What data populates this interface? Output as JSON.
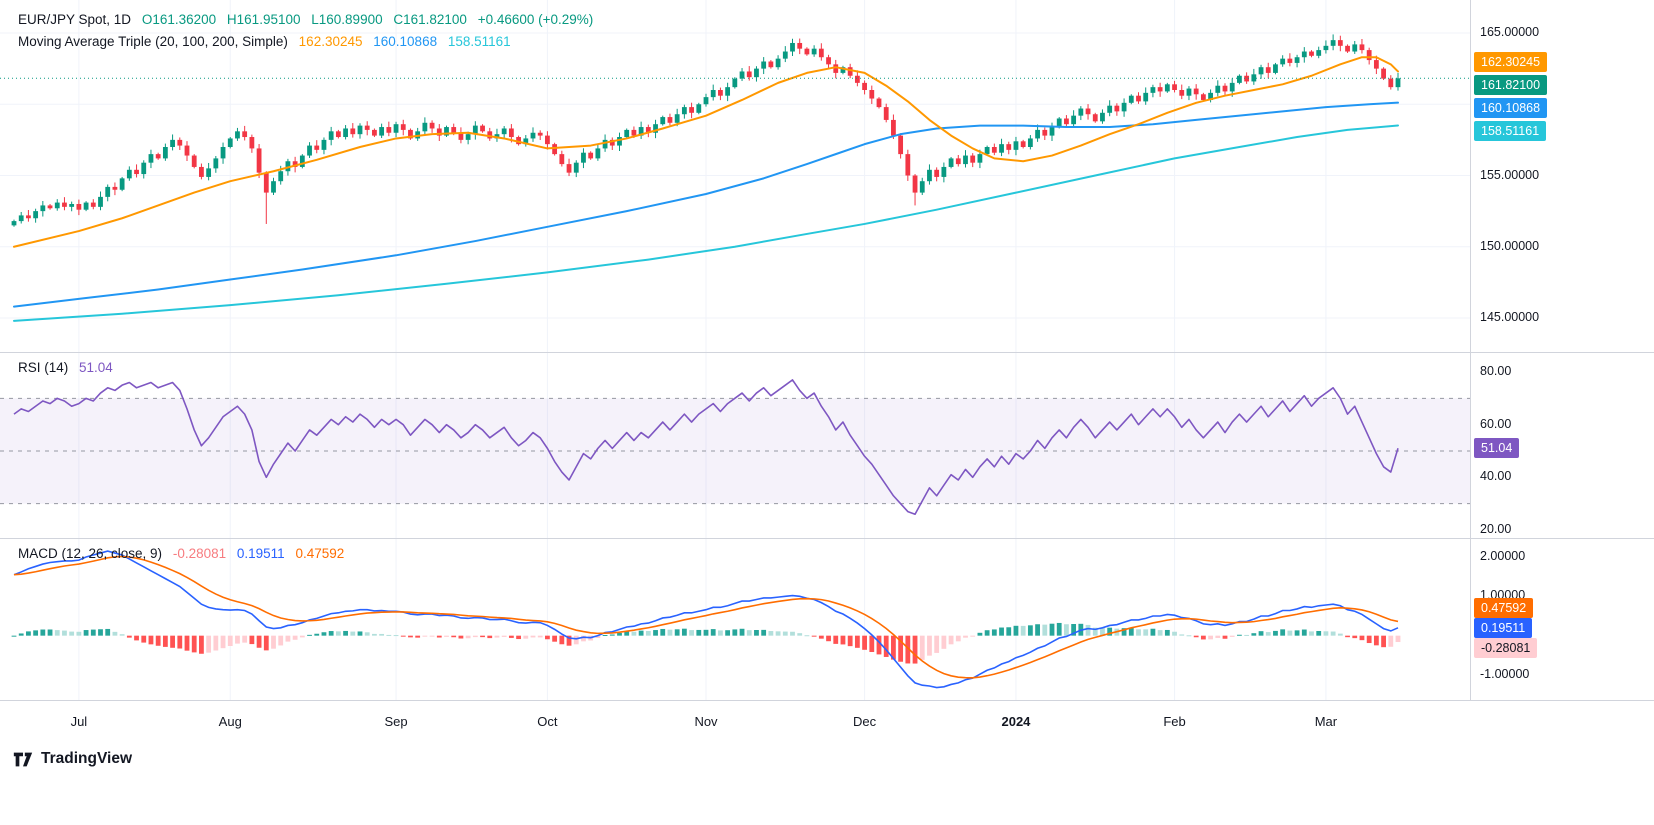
{
  "header": {
    "symbol_line": {
      "title": "EUR/JPY Spot, 1D",
      "o": "O161.36200",
      "h": "H161.95100",
      "l": "L160.89900",
      "c": "C161.82100",
      "change": "+0.46600 (+0.29%)"
    },
    "ma_line": {
      "title": "Moving Average Triple (20, 100, 200, Simple)",
      "v20": "162.30245",
      "v100": "160.10868",
      "v200": "158.51161"
    },
    "rsi_line": {
      "title": "RSI (14)",
      "value": "51.04"
    },
    "macd_line": {
      "title": "MACD (12, 26, close, 9)",
      "hist": "-0.28081",
      "macd": "0.19511",
      "signal": "0.47592"
    }
  },
  "watermark": {
    "text": "TradingView"
  },
  "colors": {
    "up": "#089981",
    "down": "#F23645",
    "ma20": "#FF9800",
    "ma100": "#2196F3",
    "ma200": "#26C6DA",
    "rsi": "#7E57C2",
    "macd_line": "#2962FF",
    "signal_line": "#FF6D00",
    "hist_up": "#26A69A",
    "hist_up_fade": "#B2DFDB",
    "hist_down": "#FF5252",
    "hist_down_fade": "#FFCDD2",
    "last_price": "#089981",
    "grid": "#F0F3FA",
    "separator": "#D1D4DC",
    "band_fill": "rgba(126,87,194,0.08)",
    "band_line": "#9598A1",
    "text": "#131722"
  },
  "price_badges": [
    {
      "label": "162.30245",
      "bg": "#FF9800",
      "fg": "#FFFFFF"
    },
    {
      "label": "161.82100",
      "bg": "#089981",
      "fg": "#FFFFFF"
    },
    {
      "label": "160.10868",
      "bg": "#2196F3",
      "fg": "#FFFFFF"
    },
    {
      "label": "158.51161",
      "bg": "#26C6DA",
      "fg": "#FFFFFF"
    }
  ],
  "rsi_badge": {
    "label": "51.04",
    "bg": "#7E57C2",
    "fg": "#FFFFFF"
  },
  "macd_badges": [
    {
      "label": "0.47592",
      "bg": "#FF6D00",
      "fg": "#FFFFFF"
    },
    {
      "label": "0.19511",
      "bg": "#2962FF",
      "fg": "#FFFFFF"
    },
    {
      "label": "-0.28081",
      "bg": "#FFCDD2",
      "fg": "#131722"
    }
  ],
  "chart_data": {
    "type": "candlestick",
    "symbol": "EUR/JPY Spot",
    "interval": "1D",
    "legend_ohlc": {
      "open": 161.362,
      "high": 161.951,
      "low": 160.899,
      "close": 161.821,
      "change_abs": 0.466,
      "change_pct": 0.29
    },
    "price_axis_ticks": [
      {
        "label": "165.00000",
        "value": 165
      },
      {
        "label": "155.00000",
        "value": 155
      },
      {
        "label": "150.00000",
        "value": 150
      },
      {
        "label": "145.00000",
        "value": 145
      }
    ],
    "price_grid": [
      165,
      160,
      155,
      150,
      145
    ],
    "closes": [
      151.8,
      152.2,
      152.0,
      152.5,
      152.9,
      152.7,
      153.1,
      152.8,
      153.0,
      152.6,
      153.1,
      152.8,
      153.5,
      154.2,
      154.0,
      154.8,
      155.4,
      155.1,
      155.9,
      156.5,
      156.2,
      157.0,
      157.5,
      157.1,
      156.4,
      155.6,
      154.9,
      155.5,
      156.2,
      157.0,
      157.6,
      158.1,
      157.7,
      156.9,
      155.2,
      153.8,
      154.6,
      155.3,
      156.0,
      155.6,
      156.4,
      157.1,
      156.8,
      157.5,
      158.1,
      157.7,
      158.3,
      157.9,
      158.5,
      158.2,
      157.8,
      158.4,
      158.0,
      158.6,
      158.2,
      157.6,
      158.1,
      158.7,
      158.3,
      157.8,
      158.4,
      158.0,
      157.5,
      157.9,
      158.5,
      158.1,
      157.6,
      157.9,
      158.3,
      157.7,
      157.2,
      157.6,
      158.0,
      157.8,
      157.2,
      156.5,
      155.8,
      155.2,
      155.9,
      156.6,
      156.2,
      156.9,
      157.5,
      157.1,
      157.7,
      158.2,
      157.8,
      158.4,
      158.0,
      158.6,
      159.1,
      158.7,
      159.3,
      159.8,
      159.4,
      160.0,
      160.5,
      161.0,
      160.6,
      161.2,
      161.8,
      162.3,
      161.9,
      162.5,
      163.0,
      162.6,
      163.2,
      163.7,
      164.3,
      163.9,
      163.5,
      163.9,
      163.3,
      162.8,
      162.2,
      162.6,
      162.0,
      161.5,
      161.0,
      160.4,
      159.8,
      158.9,
      157.8,
      156.5,
      155.0,
      153.8,
      154.6,
      155.4,
      154.9,
      155.6,
      156.2,
      155.8,
      156.4,
      155.9,
      156.5,
      157.0,
      156.6,
      157.2,
      156.8,
      157.4,
      157.0,
      157.6,
      158.2,
      157.8,
      158.4,
      159.0,
      158.6,
      159.2,
      159.7,
      159.3,
      158.8,
      159.4,
      159.9,
      159.5,
      160.1,
      160.6,
      160.2,
      160.8,
      161.2,
      160.9,
      161.4,
      161.0,
      160.6,
      161.1,
      160.7,
      160.3,
      160.8,
      161.3,
      160.9,
      161.5,
      162.0,
      161.6,
      162.1,
      162.6,
      162.2,
      162.8,
      163.2,
      162.9,
      163.3,
      163.7,
      163.4,
      163.8,
      164.1,
      164.5,
      164.1,
      163.7,
      164.2,
      163.8,
      163.1,
      162.5,
      161.8,
      161.2,
      161.82
    ],
    "wick_high_overrides": {
      "108": 164.6,
      "183": 164.9
    },
    "wick_low_overrides": {
      "35": 151.6,
      "125": 152.9
    },
    "moving_averages": {
      "kind": "Simple",
      "periods": [
        20,
        100,
        200
      ],
      "last_values": [
        162.30245,
        160.10868,
        158.51161
      ],
      "ma20_anchors": [
        [
          0,
          150.0
        ],
        [
          9,
          151.1
        ],
        [
          15,
          152.0
        ],
        [
          20,
          152.9
        ],
        [
          25,
          153.8
        ],
        [
          30,
          154.6
        ],
        [
          36,
          155.3
        ],
        [
          42,
          156.1
        ],
        [
          48,
          157.0
        ],
        [
          53,
          157.6
        ],
        [
          58,
          157.9
        ],
        [
          63,
          158.0
        ],
        [
          68,
          157.6
        ],
        [
          74,
          156.9
        ],
        [
          80,
          157.1
        ],
        [
          85,
          157.6
        ],
        [
          90,
          158.3
        ],
        [
          96,
          159.2
        ],
        [
          101,
          160.3
        ],
        [
          106,
          161.5
        ],
        [
          110,
          162.2
        ],
        [
          114,
          162.6
        ],
        [
          118,
          162.2
        ],
        [
          121,
          161.3
        ],
        [
          124,
          160.2
        ],
        [
          127,
          158.9
        ],
        [
          130,
          157.8
        ],
        [
          133,
          156.9
        ],
        [
          136,
          156.2
        ],
        [
          140,
          156.0
        ],
        [
          144,
          156.4
        ],
        [
          148,
          157.1
        ],
        [
          152,
          157.9
        ],
        [
          156,
          158.6
        ],
        [
          160,
          159.4
        ],
        [
          164,
          160.1
        ],
        [
          168,
          160.6
        ],
        [
          172,
          161.0
        ],
        [
          176,
          161.4
        ],
        [
          180,
          162.0
        ],
        [
          184,
          162.8
        ],
        [
          187,
          163.3
        ],
        [
          189,
          163.3
        ],
        [
          191,
          162.8
        ],
        [
          192,
          162.3
        ]
      ],
      "ma100_anchors": [
        [
          0,
          145.8
        ],
        [
          10,
          146.4
        ],
        [
          20,
          147.0
        ],
        [
          30,
          147.7
        ],
        [
          40,
          148.4
        ],
        [
          53,
          149.4
        ],
        [
          64,
          150.4
        ],
        [
          74,
          151.4
        ],
        [
          85,
          152.5
        ],
        [
          96,
          153.7
        ],
        [
          104,
          154.8
        ],
        [
          110,
          155.8
        ],
        [
          114,
          156.5
        ],
        [
          118,
          157.2
        ],
        [
          123,
          157.9
        ],
        [
          128,
          158.3
        ],
        [
          134,
          158.5
        ],
        [
          140,
          158.5
        ],
        [
          146,
          158.4
        ],
        [
          152,
          158.4
        ],
        [
          158,
          158.6
        ],
        [
          164,
          158.9
        ],
        [
          170,
          159.2
        ],
        [
          176,
          159.5
        ],
        [
          182,
          159.8
        ],
        [
          188,
          160.0
        ],
        [
          192,
          160.11
        ]
      ],
      "ma200_anchors": [
        [
          0,
          144.8
        ],
        [
          15,
          145.3
        ],
        [
          30,
          145.9
        ],
        [
          45,
          146.6
        ],
        [
          60,
          147.4
        ],
        [
          74,
          148.2
        ],
        [
          88,
          149.1
        ],
        [
          100,
          150.0
        ],
        [
          110,
          150.9
        ],
        [
          118,
          151.6
        ],
        [
          128,
          152.6
        ],
        [
          139,
          153.8
        ],
        [
          150,
          155.0
        ],
        [
          161,
          156.2
        ],
        [
          170,
          157.0
        ],
        [
          178,
          157.7
        ],
        [
          185,
          158.2
        ],
        [
          192,
          158.51
        ]
      ]
    },
    "rsi": {
      "period": 14,
      "last": 51.04,
      "upper_band": 70,
      "mid": 50,
      "lower_band": 30,
      "axis_ticks": [
        {
          "label": "80.00",
          "value": 80
        },
        {
          "label": "60.00",
          "value": 60
        },
        {
          "label": "40.00",
          "value": 40
        },
        {
          "label": "20.00",
          "value": 20
        }
      ],
      "values": [
        64,
        66,
        65,
        67,
        69,
        68,
        70,
        69,
        67,
        68,
        70,
        69,
        72,
        74,
        73,
        75,
        76,
        74,
        75,
        76,
        74,
        75,
        76,
        73,
        66,
        58,
        52,
        55,
        59,
        63,
        65,
        67,
        64,
        58,
        46,
        40,
        45,
        49,
        53,
        50,
        54,
        58,
        56,
        59,
        62,
        60,
        63,
        61,
        64,
        62,
        59,
        62,
        60,
        62,
        60,
        56,
        59,
        62,
        60,
        57,
        60,
        58,
        55,
        57,
        60,
        58,
        55,
        57,
        59,
        55,
        52,
        54,
        57,
        55,
        51,
        46,
        42,
        39,
        44,
        49,
        47,
        51,
        54,
        51,
        54,
        57,
        54,
        57,
        55,
        58,
        61,
        58,
        61,
        64,
        61,
        64,
        66,
        68,
        65,
        68,
        70,
        72,
        69,
        72,
        74,
        71,
        73,
        75,
        77,
        73,
        70,
        72,
        67,
        63,
        58,
        61,
        56,
        52,
        48,
        45,
        41,
        37,
        33,
        30,
        27,
        26,
        31,
        36,
        33,
        37,
        41,
        39,
        43,
        40,
        44,
        47,
        44,
        48,
        45,
        49,
        47,
        50,
        54,
        51,
        55,
        58,
        55,
        59,
        62,
        59,
        55,
        58,
        61,
        58,
        61,
        64,
        60,
        63,
        66,
        63,
        66,
        63,
        59,
        62,
        58,
        55,
        58,
        61,
        57,
        61,
        64,
        61,
        64,
        67,
        63,
        66,
        69,
        65,
        68,
        71,
        67,
        70,
        72,
        74,
        70,
        64,
        67,
        61,
        55,
        49,
        44,
        42,
        51.04
      ]
    },
    "macd": {
      "fast": 12,
      "slow": 26,
      "source": "close",
      "signal_period": 9,
      "histogram_last": -0.28081,
      "macd_last": 0.19511,
      "signal_last": 0.47592,
      "axis_ticks": [
        {
          "label": "2.00000",
          "value": 2
        },
        {
          "label": "1.00000",
          "value": 1
        },
        {
          "label": "-1.00000",
          "value": -1
        }
      ],
      "macd_values": [
        1.55,
        1.62,
        1.7,
        1.76,
        1.82,
        1.86,
        1.88,
        1.9,
        1.9,
        1.92,
        2.0,
        2.05,
        2.1,
        2.15,
        2.1,
        2.05,
        1.95,
        1.85,
        1.75,
        1.65,
        1.55,
        1.45,
        1.35,
        1.25,
        1.1,
        0.95,
        0.8,
        0.72,
        0.68,
        0.66,
        0.65,
        0.66,
        0.64,
        0.55,
        0.38,
        0.22,
        0.18,
        0.2,
        0.26,
        0.28,
        0.33,
        0.4,
        0.44,
        0.5,
        0.56,
        0.58,
        0.62,
        0.63,
        0.66,
        0.66,
        0.63,
        0.64,
        0.62,
        0.62,
        0.6,
        0.55,
        0.53,
        0.55,
        0.55,
        0.51,
        0.52,
        0.5,
        0.45,
        0.44,
        0.46,
        0.45,
        0.41,
        0.41,
        0.42,
        0.38,
        0.33,
        0.32,
        0.34,
        0.33,
        0.26,
        0.16,
        0.04,
        -0.06,
        -0.08,
        -0.04,
        -0.05,
        0.0,
        0.08,
        0.1,
        0.16,
        0.22,
        0.24,
        0.3,
        0.32,
        0.38,
        0.45,
        0.47,
        0.52,
        0.58,
        0.58,
        0.62,
        0.66,
        0.72,
        0.72,
        0.76,
        0.82,
        0.88,
        0.88,
        0.92,
        0.96,
        0.96,
        0.98,
        1.0,
        1.02,
        1.0,
        0.95,
        0.92,
        0.84,
        0.74,
        0.62,
        0.55,
        0.44,
        0.32,
        0.18,
        0.02,
        -0.16,
        -0.36,
        -0.58,
        -0.8,
        -1.02,
        -1.2,
        -1.26,
        -1.28,
        -1.32,
        -1.3,
        -1.24,
        -1.2,
        -1.12,
        -1.08,
        -0.98,
        -0.88,
        -0.82,
        -0.72,
        -0.66,
        -0.56,
        -0.5,
        -0.42,
        -0.32,
        -0.26,
        -0.16,
        -0.06,
        -0.02,
        0.06,
        0.14,
        0.18,
        0.16,
        0.2,
        0.26,
        0.28,
        0.34,
        0.4,
        0.4,
        0.44,
        0.5,
        0.5,
        0.54,
        0.52,
        0.46,
        0.44,
        0.38,
        0.3,
        0.28,
        0.3,
        0.26,
        0.3,
        0.36,
        0.36,
        0.42,
        0.5,
        0.5,
        0.56,
        0.64,
        0.64,
        0.68,
        0.74,
        0.72,
        0.76,
        0.78,
        0.8,
        0.76,
        0.66,
        0.62,
        0.54,
        0.42,
        0.3,
        0.18,
        0.12,
        0.2
      ]
    },
    "months": [
      {
        "label": "Jul",
        "index": 9
      },
      {
        "label": "Aug",
        "index": 30
      },
      {
        "label": "Sep",
        "index": 53
      },
      {
        "label": "Oct",
        "index": 74
      },
      {
        "label": "Nov",
        "index": 96
      },
      {
        "label": "Dec",
        "index": 118
      },
      {
        "label": "2024",
        "index": 139,
        "major": true
      },
      {
        "label": "Feb",
        "index": 161
      },
      {
        "label": "Mar",
        "index": 182
      }
    ]
  }
}
